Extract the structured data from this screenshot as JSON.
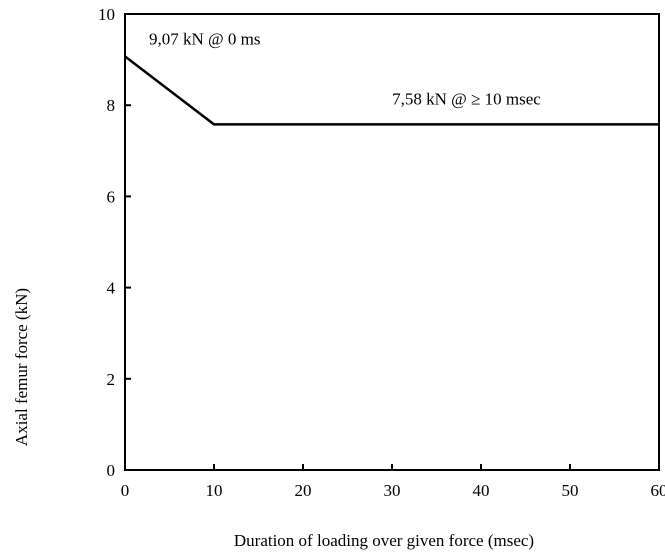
{
  "chart_data": {
    "type": "line",
    "title": "",
    "xlabel": "Duration of loading over given force (msec)",
    "ylabel": "Axial femur force (kN)",
    "xlim": [
      0,
      60
    ],
    "ylim": [
      0,
      10
    ],
    "xticks": [
      0,
      10,
      20,
      30,
      40,
      50,
      60
    ],
    "yticks": [
      0,
      2,
      4,
      6,
      8,
      10
    ],
    "grid": false,
    "legend": "none",
    "series": [
      {
        "x": [
          0,
          10,
          60
        ],
        "y": [
          9.07,
          7.58,
          7.58
        ]
      }
    ],
    "annotations": [
      {
        "text": "9,07 kN @ 0 ms",
        "x": 0,
        "y": 9.07
      },
      {
        "text": "7,58 kN @ ≥ 10 msec",
        "x": 35,
        "y": 7.58
      }
    ]
  }
}
